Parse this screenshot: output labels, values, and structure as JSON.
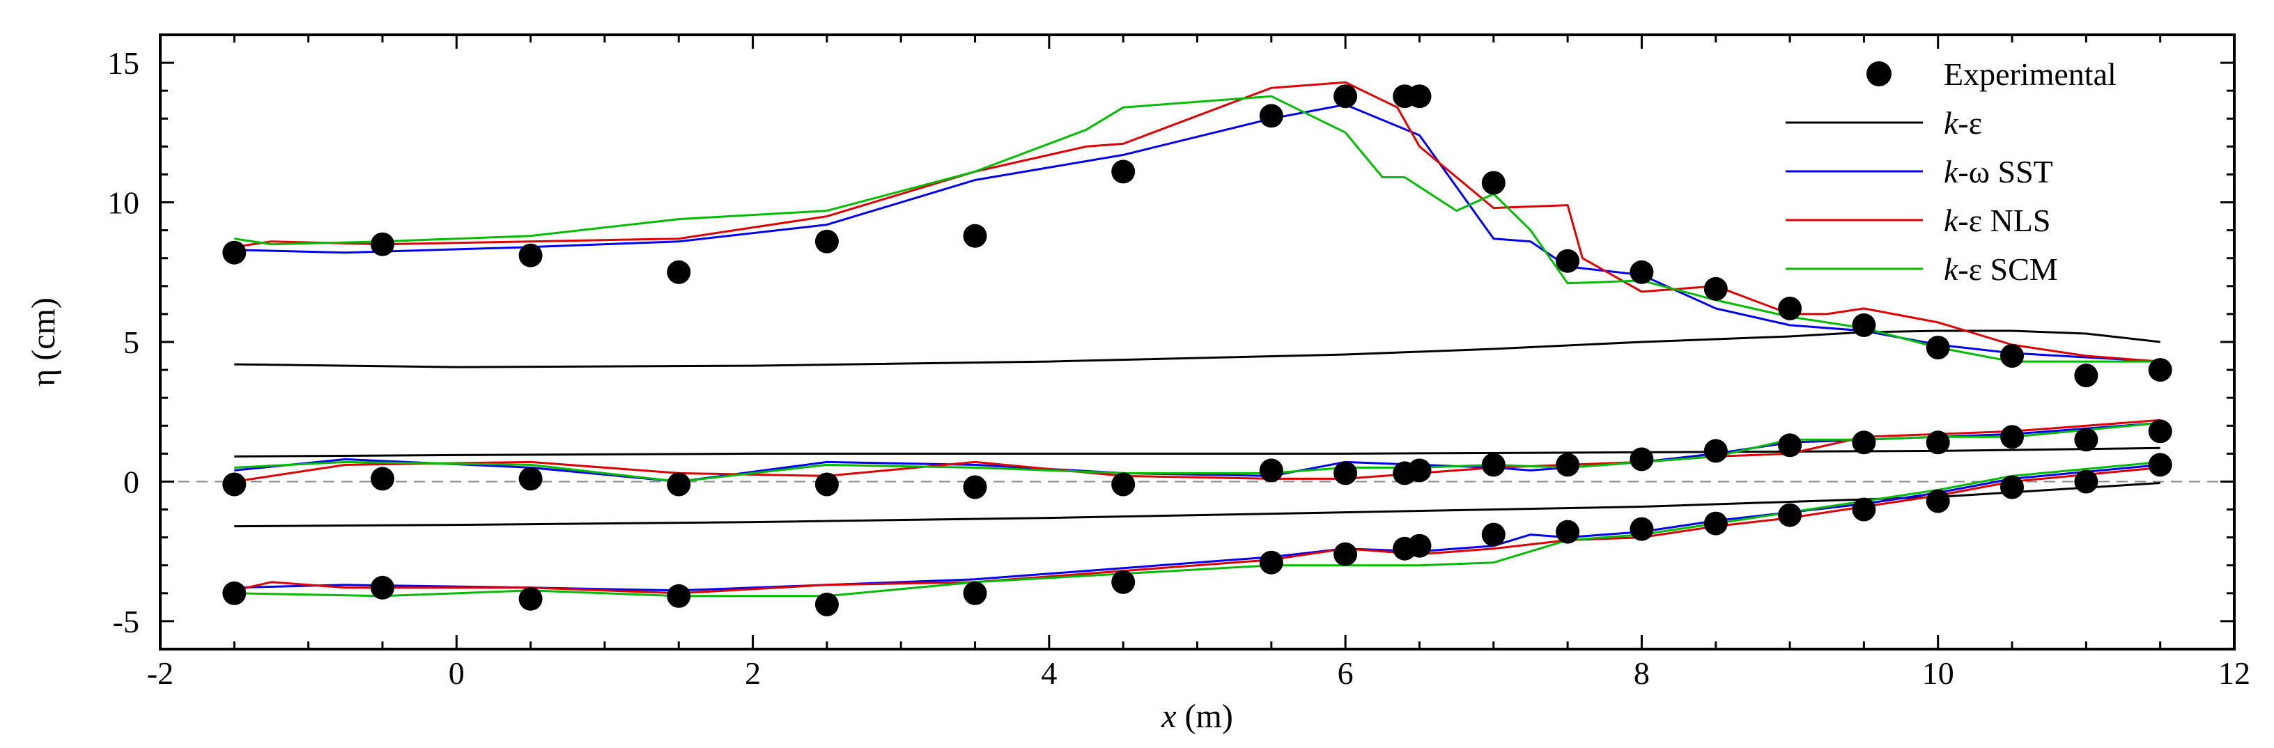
{
  "chart_data": {
    "type": "line",
    "title": "",
    "xlabel_italic": "x",
    "xlabel_rest": " (m)",
    "ylabel": "η (cm)",
    "xlim": [
      -2,
      12
    ],
    "ylim": [
      -6,
      16
    ],
    "xticks": [
      -2,
      0,
      2,
      4,
      6,
      8,
      10,
      12
    ],
    "yticks": [
      -5,
      0,
      5,
      10,
      15
    ],
    "legend_position": "top-right",
    "reference_line": {
      "y": 0,
      "style": "dashed",
      "color": "#888888"
    },
    "experimental": {
      "name": "Experimental",
      "points": [
        [
          -1.5,
          8.2
        ],
        [
          -0.5,
          8.5
        ],
        [
          0.5,
          8.1
        ],
        [
          1.5,
          7.5
        ],
        [
          2.5,
          8.6
        ],
        [
          3.5,
          8.8
        ],
        [
          4.5,
          11.1
        ],
        [
          5.5,
          13.1
        ],
        [
          6.0,
          13.8
        ],
        [
          6.4,
          13.8
        ],
        [
          6.5,
          13.8
        ],
        [
          7.0,
          10.7
        ],
        [
          7.5,
          7.9
        ],
        [
          8.0,
          7.5
        ],
        [
          8.5,
          6.9
        ],
        [
          9.0,
          6.2
        ],
        [
          9.5,
          5.6
        ],
        [
          10.0,
          4.8
        ],
        [
          10.5,
          4.5
        ],
        [
          11.0,
          3.8
        ],
        [
          11.5,
          4.0
        ],
        [
          -1.5,
          -0.1
        ],
        [
          -0.5,
          0.1
        ],
        [
          0.5,
          0.1
        ],
        [
          1.5,
          -0.1
        ],
        [
          2.5,
          -0.1
        ],
        [
          3.5,
          -0.2
        ],
        [
          4.5,
          -0.1
        ],
        [
          5.5,
          0.4
        ],
        [
          6.0,
          0.3
        ],
        [
          6.4,
          0.3
        ],
        [
          6.5,
          0.4
        ],
        [
          7.0,
          0.6
        ],
        [
          7.5,
          0.6
        ],
        [
          8.0,
          0.8
        ],
        [
          8.5,
          1.1
        ],
        [
          9.0,
          1.3
        ],
        [
          9.5,
          1.4
        ],
        [
          10.0,
          1.4
        ],
        [
          10.5,
          1.6
        ],
        [
          11.0,
          1.5
        ],
        [
          11.5,
          1.8
        ],
        [
          -1.5,
          -4.0
        ],
        [
          -0.5,
          -3.8
        ],
        [
          0.5,
          -4.2
        ],
        [
          1.5,
          -4.1
        ],
        [
          2.5,
          -4.4
        ],
        [
          3.5,
          -4.0
        ],
        [
          4.5,
          -3.6
        ],
        [
          5.5,
          -2.9
        ],
        [
          6.0,
          -2.6
        ],
        [
          6.4,
          -2.4
        ],
        [
          6.5,
          -2.3
        ],
        [
          7.0,
          -1.9
        ],
        [
          7.5,
          -1.8
        ],
        [
          8.0,
          -1.7
        ],
        [
          8.5,
          -1.5
        ],
        [
          9.0,
          -1.2
        ],
        [
          9.5,
          -1.0
        ],
        [
          10.0,
          -0.7
        ],
        [
          10.5,
          -0.2
        ],
        [
          11.0,
          0.0
        ],
        [
          11.5,
          0.6
        ]
      ]
    },
    "series": [
      {
        "name_italic": "k",
        "name_rest": "-ε",
        "color": "#000000",
        "curves": [
          [
            [
              -1.5,
              4.2
            ],
            [
              0,
              4.1
            ],
            [
              2,
              4.15
            ],
            [
              4,
              4.3
            ],
            [
              6,
              4.55
            ],
            [
              7,
              4.75
            ],
            [
              8,
              5.0
            ],
            [
              9,
              5.2
            ],
            [
              9.5,
              5.35
            ],
            [
              10,
              5.4
            ],
            [
              10.5,
              5.4
            ],
            [
              11,
              5.3
            ],
            [
              11.5,
              5.0
            ]
          ],
          [
            [
              -1.5,
              0.9
            ],
            [
              0,
              0.95
            ],
            [
              2,
              1.0
            ],
            [
              4,
              1.0
            ],
            [
              6,
              1.0
            ],
            [
              8,
              1.05
            ],
            [
              10,
              1.1
            ],
            [
              11.5,
              1.2
            ]
          ],
          [
            [
              -1.5,
              -1.6
            ],
            [
              0,
              -1.55
            ],
            [
              2,
              -1.45
            ],
            [
              4,
              -1.3
            ],
            [
              6,
              -1.1
            ],
            [
              8,
              -0.9
            ],
            [
              10,
              -0.55
            ],
            [
              11.5,
              -0.05
            ]
          ]
        ]
      },
      {
        "name_italic": "k",
        "name_rest": "-ω SST",
        "color": "#0000ee",
        "curves": [
          [
            [
              -1.5,
              8.3
            ],
            [
              -0.75,
              8.2
            ],
            [
              0.5,
              8.4
            ],
            [
              1.5,
              8.6
            ],
            [
              2.5,
              9.2
            ],
            [
              3.5,
              10.8
            ],
            [
              4.5,
              11.7
            ],
            [
              5.5,
              13.0
            ],
            [
              6.0,
              13.5
            ],
            [
              6.5,
              12.4
            ],
            [
              7.0,
              8.7
            ],
            [
              7.25,
              8.6
            ],
            [
              7.5,
              7.7
            ],
            [
              8.0,
              7.4
            ],
            [
              8.5,
              6.2
            ],
            [
              9.0,
              5.6
            ],
            [
              9.5,
              5.4
            ],
            [
              10.0,
              4.9
            ],
            [
              10.5,
              4.6
            ],
            [
              11.5,
              4.3
            ]
          ],
          [
            [
              -1.5,
              0.4
            ],
            [
              -0.75,
              0.8
            ],
            [
              0.5,
              0.5
            ],
            [
              1.5,
              0.0
            ],
            [
              2.5,
              0.7
            ],
            [
              3.5,
              0.6
            ],
            [
              4.5,
              0.3
            ],
            [
              5.5,
              0.2
            ],
            [
              6.0,
              0.7
            ],
            [
              6.5,
              0.6
            ],
            [
              7.0,
              0.5
            ],
            [
              7.25,
              0.4
            ],
            [
              7.5,
              0.5
            ],
            [
              8.0,
              0.7
            ],
            [
              8.5,
              1.0
            ],
            [
              9.0,
              1.4
            ],
            [
              9.5,
              1.5
            ],
            [
              10.0,
              1.6
            ],
            [
              10.5,
              1.7
            ],
            [
              11.5,
              2.1
            ]
          ],
          [
            [
              -1.5,
              -3.8
            ],
            [
              -0.75,
              -3.7
            ],
            [
              0.5,
              -3.8
            ],
            [
              1.5,
              -3.9
            ],
            [
              2.5,
              -3.7
            ],
            [
              3.5,
              -3.5
            ],
            [
              4.5,
              -3.1
            ],
            [
              5.5,
              -2.7
            ],
            [
              6.0,
              -2.4
            ],
            [
              6.5,
              -2.5
            ],
            [
              7.0,
              -2.3
            ],
            [
              7.25,
              -1.9
            ],
            [
              7.5,
              -2.0
            ],
            [
              8.0,
              -1.8
            ],
            [
              8.5,
              -1.4
            ],
            [
              9.0,
              -1.1
            ],
            [
              9.5,
              -0.8
            ],
            [
              10.0,
              -0.4
            ],
            [
              10.5,
              0.1
            ],
            [
              11.5,
              0.6
            ]
          ]
        ]
      },
      {
        "name_italic": "k",
        "name_rest": "-ε NLS",
        "color": "#dd0000",
        "curves": [
          [
            [
              -1.5,
              8.4
            ],
            [
              -1.25,
              8.6
            ],
            [
              -0.5,
              8.5
            ],
            [
              0.5,
              8.6
            ],
            [
              1.5,
              8.7
            ],
            [
              2.5,
              9.5
            ],
            [
              3.5,
              11.1
            ],
            [
              4.25,
              12.0
            ],
            [
              4.5,
              12.1
            ],
            [
              5.5,
              14.1
            ],
            [
              6.0,
              14.3
            ],
            [
              6.35,
              13.4
            ],
            [
              6.5,
              12.0
            ],
            [
              7.0,
              9.8
            ],
            [
              7.5,
              9.9
            ],
            [
              7.6,
              8.0
            ],
            [
              8.0,
              6.8
            ],
            [
              8.5,
              7.0
            ],
            [
              9.0,
              6.0
            ],
            [
              9.25,
              6.0
            ],
            [
              9.5,
              6.2
            ],
            [
              10.0,
              5.7
            ],
            [
              10.5,
              4.9
            ],
            [
              11.0,
              4.5
            ],
            [
              11.5,
              4.3
            ]
          ],
          [
            [
              -1.5,
              0.0
            ],
            [
              -0.75,
              0.6
            ],
            [
              0.5,
              0.7
            ],
            [
              1.5,
              0.3
            ],
            [
              2.5,
              0.2
            ],
            [
              3.5,
              0.7
            ],
            [
              4.5,
              0.2
            ],
            [
              5.5,
              0.1
            ],
            [
              6.0,
              0.1
            ],
            [
              6.5,
              0.3
            ],
            [
              7.0,
              0.5
            ],
            [
              7.5,
              0.6
            ],
            [
              8.0,
              0.7
            ],
            [
              8.5,
              0.9
            ],
            [
              9.0,
              1.0
            ],
            [
              9.5,
              1.6
            ],
            [
              10.0,
              1.7
            ],
            [
              10.5,
              1.8
            ],
            [
              11.5,
              2.2
            ]
          ],
          [
            [
              -1.5,
              -3.9
            ],
            [
              -1.25,
              -3.6
            ],
            [
              -0.75,
              -3.8
            ],
            [
              0.5,
              -3.8
            ],
            [
              1.5,
              -4.0
            ],
            [
              2.5,
              -3.7
            ],
            [
              3.5,
              -3.6
            ],
            [
              4.5,
              -3.2
            ],
            [
              5.5,
              -2.8
            ],
            [
              6.0,
              -2.4
            ],
            [
              6.5,
              -2.6
            ],
            [
              7.0,
              -2.4
            ],
            [
              7.5,
              -2.1
            ],
            [
              8.0,
              -2.0
            ],
            [
              8.5,
              -1.6
            ],
            [
              9.0,
              -1.3
            ],
            [
              9.5,
              -0.9
            ],
            [
              10.0,
              -0.5
            ],
            [
              10.5,
              0.0
            ],
            [
              11.5,
              0.5
            ]
          ]
        ]
      },
      {
        "name_italic": "k",
        "name_rest": "-ε SCM",
        "color": "#00bb00",
        "curves": [
          [
            [
              -1.5,
              8.7
            ],
            [
              -1.25,
              8.5
            ],
            [
              -0.5,
              8.6
            ],
            [
              0.5,
              8.8
            ],
            [
              1.5,
              9.4
            ],
            [
              2.5,
              9.7
            ],
            [
              3.5,
              11.1
            ],
            [
              4.25,
              12.6
            ],
            [
              4.5,
              13.4
            ],
            [
              5.5,
              13.8
            ],
            [
              6.0,
              12.5
            ],
            [
              6.25,
              10.9
            ],
            [
              6.4,
              10.9
            ],
            [
              6.75,
              9.7
            ],
            [
              7.0,
              10.3
            ],
            [
              7.25,
              9.0
            ],
            [
              7.5,
              7.1
            ],
            [
              8.0,
              7.2
            ],
            [
              8.5,
              6.5
            ],
            [
              9.0,
              5.9
            ],
            [
              9.5,
              5.5
            ],
            [
              10.0,
              4.8
            ],
            [
              10.5,
              4.3
            ],
            [
              11.0,
              4.3
            ],
            [
              11.5,
              4.3
            ]
          ],
          [
            [
              -1.5,
              0.5
            ],
            [
              -0.75,
              0.7
            ],
            [
              0.5,
              0.6
            ],
            [
              1.5,
              0.0
            ],
            [
              2.5,
              0.6
            ],
            [
              3.5,
              0.5
            ],
            [
              4.5,
              0.3
            ],
            [
              5.5,
              0.3
            ],
            [
              6.0,
              0.5
            ],
            [
              6.5,
              0.5
            ],
            [
              7.0,
              0.6
            ],
            [
              7.5,
              0.5
            ],
            [
              8.0,
              0.7
            ],
            [
              8.5,
              0.9
            ],
            [
              9.0,
              1.5
            ],
            [
              9.5,
              1.5
            ],
            [
              10.0,
              1.6
            ],
            [
              10.5,
              1.6
            ],
            [
              11.5,
              2.1
            ]
          ],
          [
            [
              -1.5,
              -4.0
            ],
            [
              -0.5,
              -4.1
            ],
            [
              0.5,
              -3.9
            ],
            [
              1.5,
              -4.1
            ],
            [
              2.5,
              -4.1
            ],
            [
              3.5,
              -3.6
            ],
            [
              4.5,
              -3.3
            ],
            [
              5.5,
              -3.0
            ],
            [
              6.0,
              -3.0
            ],
            [
              6.5,
              -3.0
            ],
            [
              7.0,
              -2.9
            ],
            [
              7.5,
              -2.1
            ],
            [
              8.0,
              -1.9
            ],
            [
              8.5,
              -1.5
            ],
            [
              9.0,
              -1.1
            ],
            [
              9.5,
              -0.7
            ],
            [
              10.0,
              -0.3
            ],
            [
              10.5,
              0.2
            ],
            [
              11.5,
              0.7
            ]
          ]
        ]
      }
    ]
  }
}
